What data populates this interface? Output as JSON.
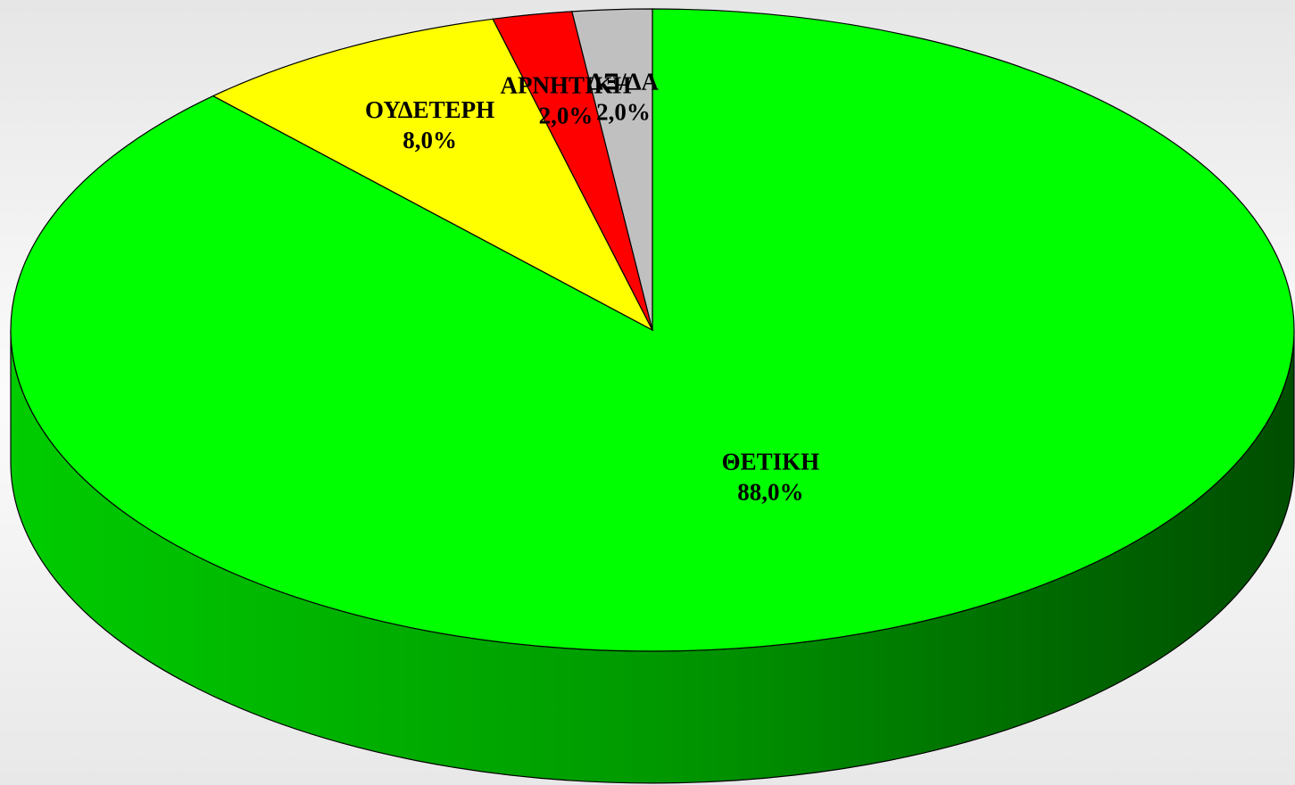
{
  "chart_data": {
    "type": "pie",
    "categories": [
      "ΘΕΤΙΚΗ",
      "ΟΥΔΕΤΕΡΗ",
      "ΑΡΝΗΤΙΚΗ",
      "ΔΞ/ΔΑ"
    ],
    "values": [
      88,
      8,
      2,
      2
    ],
    "value_labels": [
      "88,0%",
      "8,0%",
      "2,0%",
      "2,0%"
    ],
    "colors": [
      "#00ff00",
      "#ffff00",
      "#ff0000",
      "#c0c0c0"
    ]
  }
}
